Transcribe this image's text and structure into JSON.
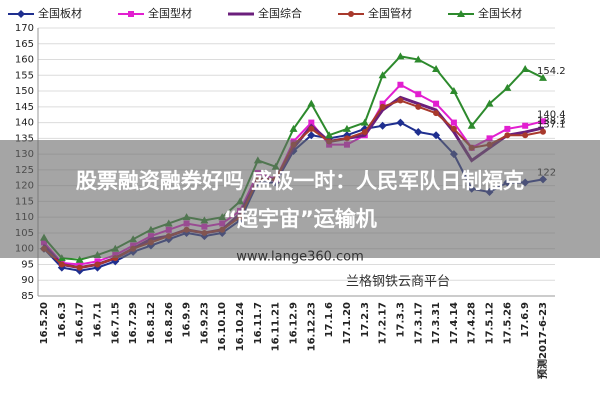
{
  "chart_data": {
    "type": "line",
    "categories": [
      "16.5.20",
      "16.6.3",
      "16.6.17",
      "16.7.1",
      "16.7.15",
      "16.7.29",
      "16.8.12",
      "16.8.26",
      "16.9.9",
      "16.9.23",
      "16.10.10",
      "16.10.24",
      "16.11.7",
      "16.11.21",
      "16.12.9",
      "16.12.23",
      "17.1.6",
      "17.1.20",
      "17.2.3",
      "17.2.17",
      "17.3.3",
      "17.3.17",
      "17.3.31",
      "17.4.14",
      "17.4.28",
      "17.5.12",
      "17.5.26",
      "17.6.9",
      "预测2017-6-23"
    ],
    "series": [
      {
        "name": "全国板材",
        "color": "#1f2f8f",
        "marker": "diamond",
        "values": [
          100,
          94,
          93,
          94,
          96,
          99,
          101,
          103,
          105,
          104,
          105,
          109,
          121,
          121,
          131,
          136,
          135,
          136,
          138,
          139,
          140,
          137,
          136,
          130,
          119,
          118,
          121,
          121,
          122
        ]
      },
      {
        "name": "全国型材",
        "color": "#e21fd0",
        "marker": "square",
        "values": [
          102,
          95.5,
          95,
          96,
          98,
          101,
          104,
          106,
          108,
          107,
          108,
          112,
          124,
          122,
          134,
          140,
          133,
          133,
          136,
          146,
          152,
          149,
          146,
          140,
          132,
          135,
          138,
          139,
          140.4
        ]
      },
      {
        "name": "全国综合",
        "color": "#6b1f7c",
        "marker": "none",
        "values": [
          101,
          95,
          94,
          95,
          97,
          100,
          103,
          104,
          106,
          105,
          106,
          111,
          122,
          122,
          132,
          139,
          134,
          135,
          136,
          144,
          148,
          146,
          144,
          137,
          128,
          132,
          136,
          137,
          138.3
        ]
      },
      {
        "name": "全国管材",
        "color": "#a8392c",
        "marker": "circle",
        "values": [
          100,
          95,
          94,
          95,
          97,
          100,
          102,
          104,
          106,
          105,
          106,
          110,
          122,
          122,
          133,
          138,
          134,
          135,
          137,
          145,
          147,
          145,
          143,
          138,
          132,
          133,
          136,
          136,
          137.1
        ]
      },
      {
        "name": "全国长材",
        "color": "#2d8a2d",
        "marker": "triangle",
        "values": [
          103.5,
          97,
          96.5,
          98,
          100,
          103,
          106,
          108,
          110,
          109,
          110,
          115,
          128,
          126,
          138,
          146,
          136,
          138,
          140,
          155,
          161,
          160,
          157,
          150,
          139,
          146,
          151,
          157,
          154.2
        ]
      }
    ],
    "ylim": [
      85,
      170
    ],
    "yticks": [
      85,
      90,
      95,
      100,
      105,
      110,
      115,
      120,
      125,
      130,
      135,
      140,
      145,
      150,
      155,
      160,
      165,
      170
    ],
    "grid": true
  },
  "overlay": {
    "headline": [
      "股票融资融券好吗 盛极一时：人民军队日制福克",
      "“超宇宙”运输机"
    ]
  },
  "watermark": {
    "url": "www.lange360.com",
    "platform": "兰格钢铁云商平台"
  }
}
